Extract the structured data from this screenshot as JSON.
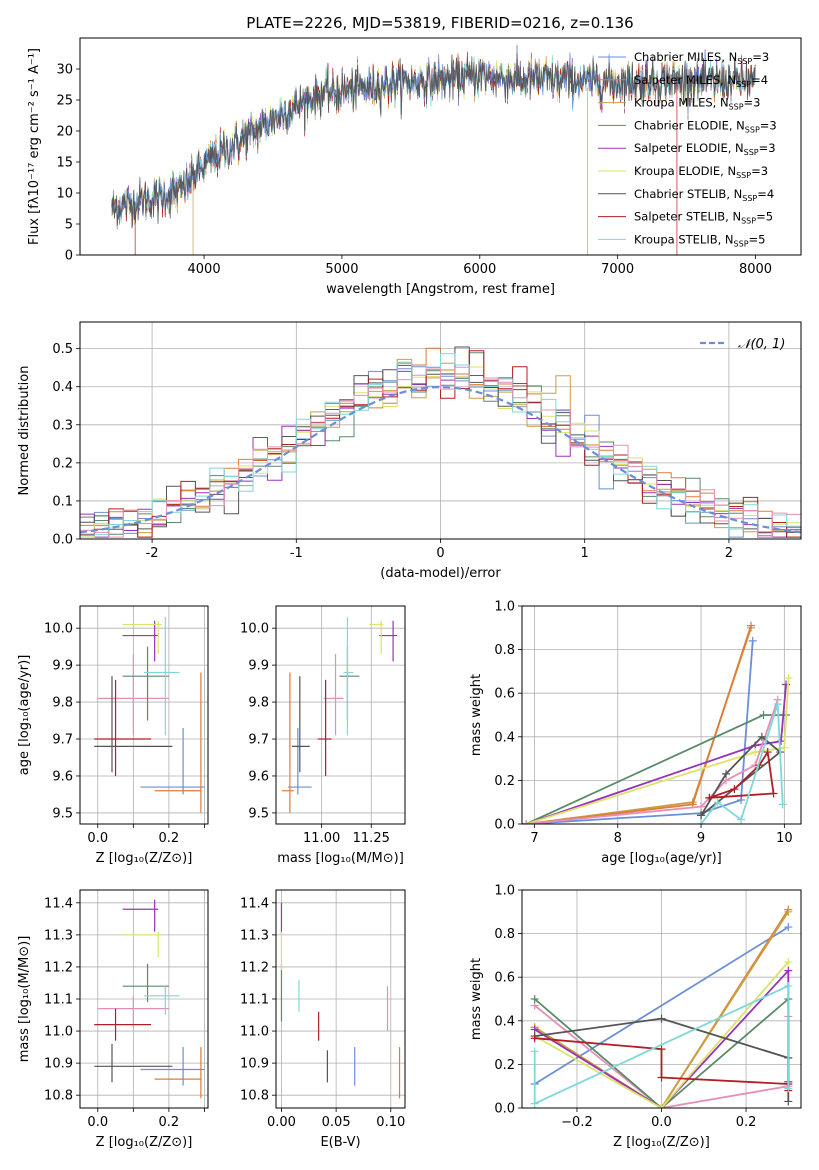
{
  "suptitle": "PLATE=2226, MJD=53819, FIBERID=0216, z=0.136",
  "colors": {
    "c_miles": "#6a8fd8",
    "s_miles": "#e07b39",
    "k_miles": "#c8a040",
    "c_elodie": "#5a8a68",
    "s_elodie": "#9a32b8",
    "k_elodie": "#dbe36a",
    "c_stelib": "#555555",
    "s_stelib": "#b01f24",
    "k_stelib": "#7fd8d8",
    "pink": "#e58fb8",
    "grid": "#b0b0b0"
  },
  "chart_data": [
    {
      "id": "spectrum",
      "type": "line",
      "xlabel": "wavelength [Angstrom, rest frame]",
      "ylabel": "Flux [fλ10⁻¹⁷ erg cm⁻² s⁻¹ A⁻¹]",
      "xlim": [
        3100,
        8330
      ],
      "ylim": [
        0,
        35
      ],
      "xticks": [
        4000,
        5000,
        6000,
        7000,
        8000
      ],
      "yticks": [
        0,
        5,
        10,
        15,
        20,
        25,
        30
      ],
      "grid": false,
      "legend_position": "top-right",
      "spectrum_anchor_x": [
        3330,
        3500,
        3700,
        3850,
        3950,
        4100,
        4300,
        4500,
        4700,
        4860,
        5000,
        5200,
        5400,
        5600,
        5800,
        6000,
        6200,
        6400,
        6600,
        6800,
        7000,
        7200,
        7400,
        7600,
        7800,
        8000
      ],
      "spectrum_anchor_y": [
        7.5,
        8.5,
        9.5,
        10.5,
        13.5,
        16,
        19,
        22,
        24.5,
        26,
        26.5,
        27,
        27.8,
        28,
        28.5,
        29,
        28.5,
        28.3,
        28.2,
        28,
        27.9,
        28,
        28.2,
        28,
        28,
        28
      ],
      "series": [
        {
          "name": "Chabrier MILES, N_SSP=3",
          "color_key": "c_miles"
        },
        {
          "name": "Salpeter MILES, N_SSP=4",
          "color_key": "s_miles"
        },
        {
          "name": "Kroupa MILES, N_SSP=3",
          "color_key": "k_miles"
        },
        {
          "name": "Chabrier ELODIE, N_SSP=3",
          "color_key": "c_elodie"
        },
        {
          "name": "Salpeter ELODIE, N_SSP=3",
          "color_key": "s_elodie"
        },
        {
          "name": "Kroupa ELODIE, N_SSP=3",
          "color_key": "k_elodie"
        },
        {
          "name": "Chabrier STELIB, N_SSP=4",
          "color_key": "c_stelib"
        },
        {
          "name": "Salpeter STELIB, N_SSP=5",
          "color_key": "s_stelib"
        },
        {
          "name": "Kroupa STELIB, N_SSP=5",
          "color_key": "k_stelib"
        }
      ]
    },
    {
      "id": "residuals",
      "type": "step-histogram",
      "xlabel": "(data-model)/error",
      "ylabel": "Normed distribution",
      "xlim": [
        -2.5,
        2.5
      ],
      "ylim": [
        0,
        0.57
      ],
      "xticks": [
        -2,
        -1,
        0,
        1,
        2
      ],
      "yticks": [
        0.0,
        0.1,
        0.2,
        0.3,
        0.4,
        0.5
      ],
      "grid": true,
      "legend": "𝒩(0, 1)",
      "bin_width": 0.1,
      "bin_start": -2.5,
      "reference_curve": "gaussian mu=0 sigma=1"
    },
    {
      "id": "age-vs-Z",
      "type": "errorbar",
      "xlabel": "Z [log₁₀(Z/Z⊙)]",
      "ylabel": "age  [log₁₀(age/yr)]",
      "xlim": [
        -0.05,
        0.31
      ],
      "ylim": [
        9.47,
        10.06
      ],
      "xticks": [
        0.0,
        0.1,
        0.2,
        0.3
      ],
      "xticklabels": [
        "0.0",
        "",
        "0.2",
        ""
      ],
      "yticks": [
        9.5,
        9.6,
        9.7,
        9.8,
        9.9,
        10.0
      ],
      "grid": true,
      "points": [
        {
          "color_key": "c_miles",
          "x": 0.24,
          "xlo": 0.12,
          "xhi": 0.3,
          "y": 9.57,
          "ylo": 9.55,
          "yhi": 9.73
        },
        {
          "color_key": "s_miles",
          "x": 0.29,
          "xlo": 0.16,
          "xhi": 0.29,
          "y": 9.56,
          "ylo": 9.5,
          "yhi": 9.88
        },
        {
          "color_key": "pink",
          "x": 0.1,
          "xlo": 0.0,
          "xhi": 0.2,
          "y": 9.81,
          "ylo": 9.71,
          "yhi": 9.93
        },
        {
          "color_key": "c_elodie",
          "x": 0.14,
          "xlo": 0.07,
          "xhi": 0.2,
          "y": 9.87,
          "ylo": 9.75,
          "yhi": 9.95
        },
        {
          "color_key": "s_elodie",
          "x": 0.16,
          "xlo": 0.07,
          "xhi": 0.17,
          "y": 9.98,
          "ylo": 9.91,
          "yhi": 10.02
        },
        {
          "color_key": "k_elodie",
          "x": 0.17,
          "xlo": 0.07,
          "xhi": 0.18,
          "y": 10.01,
          "ylo": 9.93,
          "yhi": 10.02
        },
        {
          "color_key": "c_stelib",
          "x": 0.04,
          "xlo": -0.01,
          "xhi": 0.21,
          "y": 9.68,
          "ylo": 9.61,
          "yhi": 9.87
        },
        {
          "color_key": "s_stelib",
          "x": 0.05,
          "xlo": -0.01,
          "xhi": 0.15,
          "y": 9.7,
          "ylo": 9.6,
          "yhi": 9.86
        },
        {
          "color_key": "k_stelib",
          "x": 0.19,
          "xlo": 0.13,
          "xhi": 0.23,
          "y": 9.88,
          "ylo": 9.71,
          "yhi": 10.03
        }
      ]
    },
    {
      "id": "age-vs-mass",
      "type": "errorbar",
      "xlabel": "mass [log₁₀(M/M⊙)]",
      "ylabel": "",
      "xlim": [
        10.77,
        11.42
      ],
      "ylim": [
        9.47,
        10.06
      ],
      "xticks": [
        11.0,
        11.25
      ],
      "xticklabels": [
        "11.00",
        "11.25"
      ],
      "yticks": [
        9.5,
        9.6,
        9.7,
        9.8,
        9.9,
        10.0
      ],
      "grid": true,
      "points": [
        {
          "color_key": "c_miles",
          "x": 10.88,
          "xlo": 10.83,
          "xhi": 10.95,
          "y": 9.57,
          "ylo": 9.55,
          "yhi": 9.73
        },
        {
          "color_key": "s_miles",
          "x": 10.84,
          "xlo": 10.8,
          "xhi": 10.86,
          "y": 9.56,
          "ylo": 9.5,
          "yhi": 9.88
        },
        {
          "color_key": "pink",
          "x": 11.07,
          "xlo": 11.01,
          "xhi": 11.11,
          "y": 9.81,
          "ylo": 9.71,
          "yhi": 9.93
        },
        {
          "color_key": "c_elodie",
          "x": 11.13,
          "xlo": 11.09,
          "xhi": 11.19,
          "y": 9.87,
          "ylo": 9.75,
          "yhi": 9.95
        },
        {
          "color_key": "s_elodie",
          "x": 11.36,
          "xlo": 11.29,
          "xhi": 11.38,
          "y": 9.98,
          "ylo": 9.91,
          "yhi": 10.02
        },
        {
          "color_key": "k_elodie",
          "x": 11.3,
          "xlo": 11.24,
          "xhi": 11.31,
          "y": 10.01,
          "ylo": 9.93,
          "yhi": 10.02
        },
        {
          "color_key": "c_stelib",
          "x": 10.89,
          "xlo": 10.85,
          "xhi": 10.94,
          "y": 9.68,
          "ylo": 9.61,
          "yhi": 9.87
        },
        {
          "color_key": "s_stelib",
          "x": 11.02,
          "xlo": 10.98,
          "xhi": 11.05,
          "y": 9.7,
          "ylo": 9.6,
          "yhi": 9.86
        },
        {
          "color_key": "k_stelib",
          "x": 11.13,
          "xlo": 11.11,
          "xhi": 11.16,
          "y": 9.88,
          "ylo": 9.71,
          "yhi": 10.03
        }
      ]
    },
    {
      "id": "weight-vs-age",
      "type": "line",
      "xlabel": "age  [log₁₀(age/yr)]",
      "ylabel": "mass weight",
      "xlim": [
        6.85,
        10.2
      ],
      "ylim": [
        0,
        1.0
      ],
      "xticks": [
        7,
        8,
        9,
        10
      ],
      "yticks": [
        0.0,
        0.2,
        0.4,
        0.6,
        0.8,
        1.0
      ],
      "grid": true,
      "series": [
        {
          "color_key": "k_miles",
          "x": [
            6.9,
            8.9,
            9.6
          ],
          "y": [
            0.0,
            0.1,
            0.9
          ]
        },
        {
          "color_key": "s_miles",
          "x": [
            6.9,
            8.9,
            9.6
          ],
          "y": [
            0.0,
            0.09,
            0.91
          ]
        },
        {
          "color_key": "c_miles",
          "x": [
            6.9,
            9.0,
            9.48,
            9.62
          ],
          "y": [
            0.0,
            0.05,
            0.11,
            0.84
          ]
        },
        {
          "color_key": "c_elodie",
          "x": [
            6.9,
            9.75,
            10.02
          ],
          "y": [
            0.0,
            0.5,
            0.5
          ]
        },
        {
          "color_key": "s_elodie",
          "x": [
            6.9,
            9.65,
            9.96,
            10.02
          ],
          "y": [
            0.0,
            0.36,
            0.38,
            0.64
          ]
        },
        {
          "color_key": "k_elodie",
          "x": [
            6.9,
            9.65,
            10.0,
            10.05
          ],
          "y": [
            0.0,
            0.33,
            0.35,
            0.67
          ]
        },
        {
          "color_key": "pink",
          "x": [
            6.9,
            9.0,
            9.3,
            9.65,
            9.92
          ],
          "y": [
            0.0,
            0.08,
            0.2,
            0.27,
            0.57
          ]
        },
        {
          "color_key": "c_stelib",
          "x": [
            9.0,
            9.3,
            9.73,
            9.95,
            9.0
          ],
          "y": [
            0.04,
            0.23,
            0.4,
            0.33,
            0.04
          ]
        },
        {
          "color_key": "s_stelib",
          "x": [
            9.1,
            9.4,
            9.7,
            9.8,
            9.87,
            9.1
          ],
          "y": [
            0.12,
            0.16,
            0.27,
            0.33,
            0.14,
            0.12
          ]
        },
        {
          "color_key": "k_stelib",
          "x": [
            9.0,
            9.2,
            9.48,
            9.92,
            9.98
          ],
          "y": [
            0.0,
            0.1,
            0.02,
            0.55,
            0.09
          ]
        }
      ]
    },
    {
      "id": "mass-vs-Z",
      "type": "errorbar",
      "xlabel": "Z [log₁₀(Z/Z⊙)]",
      "ylabel": "mass [log₁₀(M/M⊙)]",
      "xlim": [
        -0.05,
        0.31
      ],
      "ylim": [
        10.76,
        11.44
      ],
      "xticks": [
        0.0,
        0.1,
        0.2,
        0.3
      ],
      "xticklabels": [
        "0.0",
        "",
        "0.2",
        ""
      ],
      "yticks": [
        10.8,
        10.9,
        11.0,
        11.1,
        11.2,
        11.3,
        11.4
      ],
      "grid": true,
      "points": [
        {
          "color_key": "c_miles",
          "x": 0.24,
          "xlo": 0.12,
          "xhi": 0.3,
          "y": 10.88,
          "ylo": 10.83,
          "yhi": 10.95
        },
        {
          "color_key": "s_miles",
          "x": 0.29,
          "xlo": 0.16,
          "xhi": 0.29,
          "y": 10.85,
          "ylo": 10.79,
          "yhi": 10.95
        },
        {
          "color_key": "pink",
          "x": 0.1,
          "xlo": 0.0,
          "xhi": 0.2,
          "y": 11.07,
          "ylo": 11.01,
          "yhi": 11.11
        },
        {
          "color_key": "c_elodie",
          "x": 0.14,
          "xlo": 0.07,
          "xhi": 0.2,
          "y": 11.14,
          "ylo": 11.09,
          "yhi": 11.21
        },
        {
          "color_key": "s_elodie",
          "x": 0.16,
          "xlo": 0.07,
          "xhi": 0.17,
          "y": 11.38,
          "ylo": 11.31,
          "yhi": 11.41
        },
        {
          "color_key": "k_elodie",
          "x": 0.17,
          "xlo": 0.07,
          "xhi": 0.18,
          "y": 11.3,
          "ylo": 11.23,
          "yhi": 11.31
        },
        {
          "color_key": "c_stelib",
          "x": 0.04,
          "xlo": -0.01,
          "xhi": 0.21,
          "y": 10.89,
          "ylo": 10.84,
          "yhi": 10.96
        },
        {
          "color_key": "s_stelib",
          "x": 0.05,
          "xlo": -0.01,
          "xhi": 0.15,
          "y": 11.02,
          "ylo": 10.97,
          "yhi": 11.07
        },
        {
          "color_key": "k_stelib",
          "x": 0.19,
          "xlo": 0.13,
          "xhi": 0.23,
          "y": 11.11,
          "ylo": 11.05,
          "yhi": 11.14
        }
      ]
    },
    {
      "id": "mass-vs-EBV",
      "type": "errorbar",
      "xlabel": "E(B-V)",
      "ylabel": "",
      "xlim": [
        -0.005,
        0.113
      ],
      "ylim": [
        10.76,
        11.44
      ],
      "xticks": [
        0.0,
        0.05,
        0.1
      ],
      "xticklabels": [
        "0.00",
        "0.05",
        "0.10"
      ],
      "yticks": [
        10.8,
        10.9,
        11.0,
        11.1,
        11.2,
        11.3,
        11.4
      ],
      "grid": true,
      "points": [
        {
          "color_key": "c_miles",
          "x": 0.067,
          "y": 10.88,
          "ylo": 10.83,
          "yhi": 10.95
        },
        {
          "color_key": "s_miles",
          "x": 0.108,
          "y": 10.86,
          "ylo": 10.79,
          "yhi": 10.95
        },
        {
          "color_key": "pink",
          "x": 0.097,
          "y": 11.07,
          "ylo": 11.0,
          "yhi": 11.14
        },
        {
          "color_key": "c_elodie",
          "x": 0.0,
          "y": 11.1,
          "ylo": 11.03,
          "yhi": 11.21
        },
        {
          "color_key": "s_elodie",
          "x": 0.0,
          "y": 11.35,
          "ylo": 11.3,
          "yhi": 11.4
        },
        {
          "color_key": "k_elodie",
          "x": 0.0,
          "y": 11.25,
          "ylo": 11.19,
          "yhi": 11.31
        },
        {
          "color_key": "c_stelib",
          "x": 0.042,
          "y": 10.89,
          "ylo": 10.84,
          "yhi": 10.94
        },
        {
          "color_key": "s_stelib",
          "x": 0.034,
          "y": 11.02,
          "ylo": 10.97,
          "yhi": 11.06
        },
        {
          "color_key": "k_stelib",
          "x": 0.016,
          "y": 11.11,
          "ylo": 11.06,
          "yhi": 11.16
        }
      ]
    },
    {
      "id": "weight-vs-Z",
      "type": "line",
      "xlabel": "Z [log₁₀(Z/Z⊙)]",
      "ylabel": "mass weight",
      "xlim": [
        -0.33,
        0.33
      ],
      "ylim": [
        0,
        1.0
      ],
      "xticks": [
        -0.2,
        0.0,
        0.2
      ],
      "xticklabels": [
        "−0.2",
        "0.0",
        "0.2"
      ],
      "yticks": [
        0.0,
        0.2,
        0.4,
        0.6,
        0.8,
        1.0
      ],
      "grid": true,
      "series": [
        {
          "color_key": "c_miles",
          "x": [
            -0.3,
            0.3
          ],
          "y": [
            0.11,
            0.83
          ]
        },
        {
          "color_key": "s_miles",
          "x": [
            -0.3,
            0.0,
            0.3
          ],
          "y": [
            0.37,
            0.0,
            0.91
          ]
        },
        {
          "color_key": "k_miles",
          "x": [
            -0.3,
            0.0,
            0.3
          ],
          "y": [
            0.37,
            0.0,
            0.9
          ]
        },
        {
          "color_key": "pink",
          "x": [
            -0.3,
            0.0,
            0.3,
            0.3
          ],
          "y": [
            0.47,
            0.0,
            0.1,
            0.42
          ]
        },
        {
          "color_key": "c_elodie",
          "x": [
            -0.3,
            0.0,
            0.3,
            0.3
          ],
          "y": [
            0.5,
            0.0,
            0.5,
            0.12
          ]
        },
        {
          "color_key": "s_elodie",
          "x": [
            -0.3,
            0.0,
            0.3,
            0.3
          ],
          "y": [
            0.36,
            0.0,
            0.63,
            0.12
          ]
        },
        {
          "color_key": "k_elodie",
          "x": [
            -0.3,
            0.0,
            0.3
          ],
          "y": [
            0.33,
            0.0,
            0.67
          ]
        },
        {
          "color_key": "c_stelib",
          "x": [
            -0.3,
            0.0,
            0.3,
            0.3
          ],
          "y": [
            0.33,
            0.41,
            0.23,
            0.03
          ]
        },
        {
          "color_key": "s_stelib",
          "x": [
            -0.3,
            0.0,
            0.0,
            0.3,
            0.3
          ],
          "y": [
            0.32,
            0.27,
            0.14,
            0.11,
            0.08
          ]
        },
        {
          "color_key": "k_stelib",
          "x": [
            -0.3,
            -0.3,
            0.3,
            0.3
          ],
          "y": [
            0.26,
            0.02,
            0.56,
            0.09
          ]
        }
      ]
    }
  ]
}
